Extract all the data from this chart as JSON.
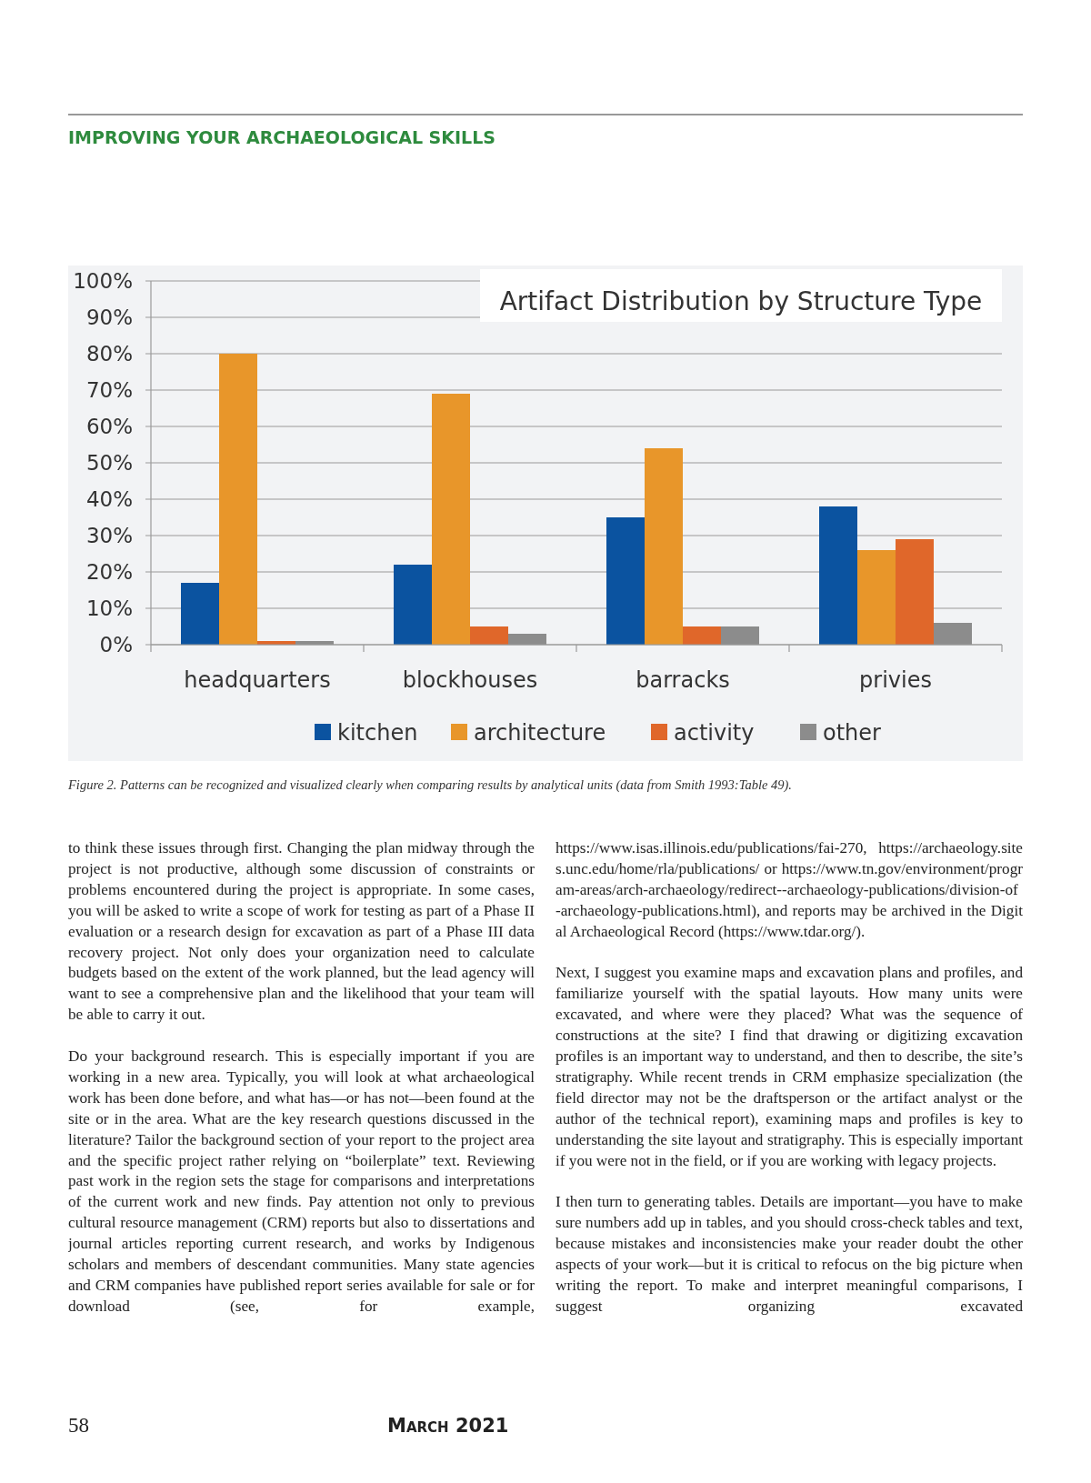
{
  "chart_data": {
    "type": "bar",
    "title": "Artifact Distribution by Structure Type",
    "categories": [
      "headquarters",
      "blockhouses",
      "barracks",
      "privies"
    ],
    "series": [
      {
        "name": "kitchen",
        "color": "#0b53a0",
        "values": [
          17,
          22,
          35,
          38
        ]
      },
      {
        "name": "architecture",
        "color": "#e8962a",
        "values": [
          80,
          69,
          54,
          26
        ]
      },
      {
        "name": "activity",
        "color": "#e0672a",
        "values": [
          1,
          5,
          5,
          29
        ]
      },
      {
        "name": "other",
        "color": "#8c8c8c",
        "values": [
          1,
          3,
          5,
          6
        ]
      }
    ],
    "ylim": [
      0,
      100
    ],
    "yticks": [
      {
        "value": 0,
        "label": "0%"
      },
      {
        "value": 10,
        "label": "10%"
      },
      {
        "value": 20,
        "label": "20%"
      },
      {
        "value": 30,
        "label": "30%"
      },
      {
        "value": 40,
        "label": "40%"
      },
      {
        "value": 50,
        "label": "50%"
      },
      {
        "value": 60,
        "label": "60%"
      },
      {
        "value": 70,
        "label": "70%"
      },
      {
        "value": 80,
        "label": "80%"
      },
      {
        "value": 90,
        "label": "90%"
      },
      {
        "value": 100,
        "label": "100%"
      }
    ],
    "grid": "y",
    "legend": "bottom",
    "annotations": [
      "IMPROVING YOUR ARCHAEOLOGICAL SKILLS",
      "Figure 2. Patterns can be recognized and visualized clearly when comparing results by analytical units (data from Smith 1993:Table 49).",
      "to think these issues through first. Changing the plan midway through the project is not productive, although some discussion of constraints or problems encountered during the project is appropriate. In some cases, you will be asked to write a scope of work for testing as part of a Phase II evaluation or a research design for excavation as part of a Phase III data recovery project. Not only does your organization need to calculate budgets based on the extent of the work planned, but the lead agency will want to see a comprehensive plan and the likelihood that your team will be able to carry it out.",
      "Do your background research. This is especially important if you are working in a new area. Typically, you will look at what archaeological work has been done before, and what has—or has not—been found at the site or in the area. What are the key research questions discussed in the literature? Tailor the background section of your report to the project area and the specific project rather relying on “boilerplate” text. Reviewing past work in the region sets the stage for comparisons and interpretations of the current work and new finds. Pay attention not only to previous cultural resource management (CRM) reports but also to dissertations and journal articles reporting current research, and works by Indigenous scholars and members of descendant communities. Many state agencies and CRM companies have published report series available for sale or for download (see, for example,",
      "https://www.isas.illinois.edu/publications/fai-270, https://archaeology.sites.unc.edu/home/rla/publications/ or https://www.tn.gov/environment/program-areas/arch-archaeology/redirect--archaeology-publications/division-of-archaeology-publications.html), and reports may be archived in the Digital Archaeological Record (https://www.tdar.org/).",
      "Next, I suggest you examine maps and excavation plans and profiles, and familiarize yourself with the spatial layouts. How many units were excavated, and where were they placed? What was the sequence of constructions at the site? I find that drawing or digitizing excavation profiles is an important way to understand, and then to describe, the site’s stratigraphy. While recent trends in CRM emphasize specialization (the field director may not be the draftsperson or the artifact analyst or the author of the technical report), examining maps and profiles is key to understanding the site layout and stratigraphy. This is especially important if you were not in the field, or if you are working with legacy projects.",
      "I then turn to generating tables. Details are important—you have to make sure numbers add up in tables, and you should cross-check tables and text, because mistakes and inconsistencies make your reader doubt the other aspects of your work—but it is critical to refocus on the big picture when writing the report. To make and interpret meaningful comparisons, I suggest organizing excavated",
      "58",
      "March 2021"
    ]
  }
}
